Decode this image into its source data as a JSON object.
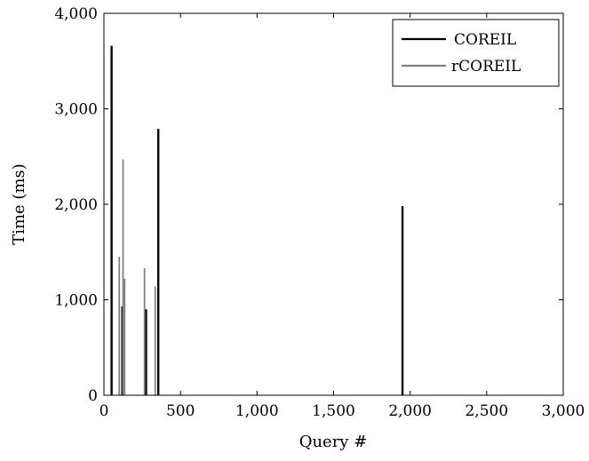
{
  "chart_data": {
    "type": "bar",
    "xlabel": "Query #",
    "ylabel": "Time (ms)",
    "xlim": [
      0,
      3000
    ],
    "ylim": [
      0,
      4000
    ],
    "x_ticks": [
      0,
      500,
      1000,
      1500,
      2000,
      2500,
      3000
    ],
    "x_tick_labels": [
      "0",
      "500",
      "1,000",
      "1,500",
      "2,000",
      "2,500",
      "3,000"
    ],
    "y_ticks": [
      0,
      1000,
      2000,
      3000,
      4000
    ],
    "y_tick_labels": [
      "0",
      "1,000",
      "2,000",
      "3,000",
      "4,000"
    ],
    "grid": false,
    "legend_position": "top-right",
    "series": [
      {
        "name": "COREIL",
        "color": "#000000",
        "points": [
          {
            "x": 50,
            "y": 3660
          },
          {
            "x": 120,
            "y": 930
          },
          {
            "x": 275,
            "y": 900
          },
          {
            "x": 355,
            "y": 2790
          },
          {
            "x": 1950,
            "y": 1980
          }
        ]
      },
      {
        "name": "rCOREIL",
        "color": "#808080",
        "points": [
          {
            "x": 100,
            "y": 1450
          },
          {
            "x": 125,
            "y": 2470
          },
          {
            "x": 135,
            "y": 1220
          },
          {
            "x": 265,
            "y": 1330
          },
          {
            "x": 335,
            "y": 1140
          }
        ]
      }
    ]
  }
}
